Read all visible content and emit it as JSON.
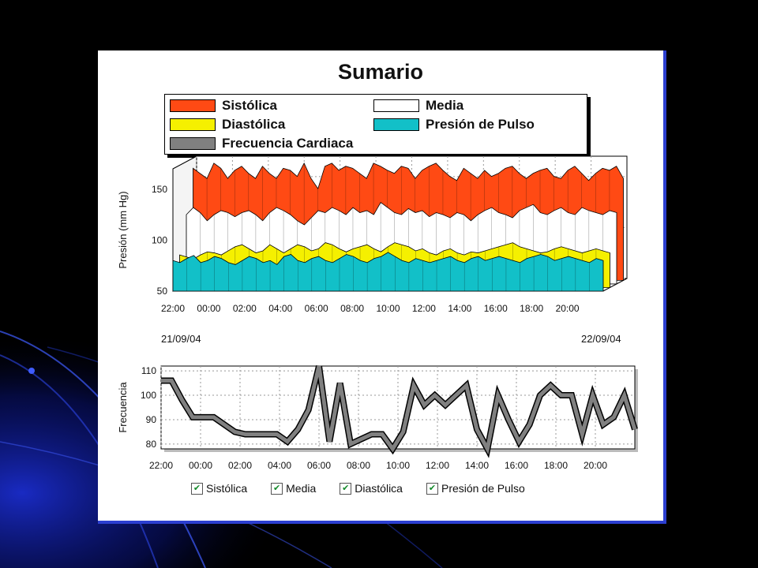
{
  "chart_data": [
    {
      "type": "area",
      "title": "Sumario",
      "ylabel": "Presión (mm Hg)",
      "ylim": [
        50,
        170
      ],
      "y_ticks": [
        50,
        100,
        150
      ],
      "x_tick_labels": [
        "22:00",
        "00:00",
        "02:00",
        "04:00",
        "06:00",
        "08:00",
        "10:00",
        "12:00",
        "14:00",
        "16:00",
        "18:00",
        "20:00"
      ],
      "grid": true,
      "legend_position": "top",
      "date_start": "21/09/04",
      "date_end": "22/09/04",
      "series": [
        {
          "name": "Sistólica",
          "color": "#ff4a14",
          "values": [
            160,
            155,
            150,
            165,
            160,
            150,
            158,
            162,
            155,
            150,
            162,
            155,
            150,
            160,
            158,
            152,
            165,
            150,
            140,
            162,
            165,
            158,
            162,
            160,
            155,
            150,
            165,
            162,
            158,
            155,
            162,
            160,
            150,
            158,
            162,
            165,
            158,
            152,
            148,
            160,
            155,
            150,
            158,
            152,
            155,
            160,
            162,
            155,
            150,
            155,
            158,
            160,
            152,
            150,
            158,
            162,
            155,
            148,
            155,
            160,
            158,
            162,
            150
          ]
        },
        {
          "name": "Media",
          "color": "#ffffff",
          "values": [
            118,
            125,
            120,
            112,
            118,
            122,
            120,
            116,
            120,
            122,
            118,
            112,
            120,
            125,
            122,
            118,
            112,
            108,
            115,
            122,
            120,
            125,
            122,
            118,
            125,
            120,
            122,
            118,
            130,
            125,
            120,
            118,
            124,
            120,
            122,
            116,
            120,
            118,
            115,
            120,
            118,
            112,
            118,
            122,
            125,
            120,
            118,
            115,
            122,
            125,
            128,
            120,
            118,
            122,
            125,
            120,
            118,
            125,
            122,
            120,
            118,
            122,
            120
          ]
        },
        {
          "name": "Diastólica",
          "color": "#f5f000",
          "values": [
            82,
            80,
            78,
            82,
            85,
            84,
            82,
            86,
            90,
            92,
            88,
            84,
            86,
            92,
            88,
            84,
            88,
            92,
            90,
            86,
            88,
            94,
            92,
            88,
            85,
            88,
            90,
            92,
            88,
            85,
            90,
            94,
            92,
            90,
            86,
            88,
            84,
            82,
            86,
            88,
            84,
            82,
            85,
            84,
            86,
            88,
            90,
            92,
            94,
            90,
            88,
            86,
            84,
            85,
            88,
            90,
            88,
            86,
            84,
            86,
            88,
            86,
            84
          ]
        },
        {
          "name": "Presión de Pulso",
          "color": "#12c0c8",
          "values": [
            80,
            78,
            82,
            85,
            78,
            80,
            84,
            82,
            78,
            76,
            80,
            84,
            82,
            78,
            80,
            76,
            84,
            86,
            80,
            78,
            82,
            84,
            80,
            78,
            82,
            86,
            84,
            80,
            78,
            82,
            84,
            88,
            84,
            80,
            78,
            82,
            80,
            78,
            80,
            82,
            84,
            80,
            78,
            82,
            84,
            80,
            82,
            84,
            82,
            80,
            78,
            82,
            84,
            86,
            84,
            80,
            82,
            84,
            82,
            80,
            78,
            82,
            80
          ]
        },
        {
          "name": "Frecuencia Cardiaca",
          "color": "#808080",
          "values": []
        }
      ]
    },
    {
      "type": "line",
      "ylabel": "Frecuencia",
      "ylim": [
        78,
        112
      ],
      "y_ticks": [
        80,
        90,
        100,
        110
      ],
      "x_tick_labels": [
        "22:00",
        "00:00",
        "02:00",
        "04:00",
        "06:00",
        "08:00",
        "10:00",
        "12:00",
        "14:00",
        "16:00",
        "18:00",
        "20:00"
      ],
      "grid": true,
      "series": [
        {
          "name": "Frecuencia Cardiaca",
          "color": "#808080",
          "values": [
            106,
            106,
            98,
            91,
            91,
            91,
            88,
            85,
            84,
            84,
            84,
            84,
            81,
            86,
            94,
            112,
            81,
            105,
            80,
            82,
            84,
            84,
            78,
            85,
            104,
            96,
            100,
            96,
            100,
            104,
            86,
            78,
            100,
            90,
            81,
            88,
            100,
            104,
            100,
            100,
            84,
            100,
            88,
            91,
            100,
            86
          ]
        }
      ]
    }
  ],
  "series_toggles": [
    {
      "label": "Sistólica",
      "checked": "✔"
    },
    {
      "label": "Media",
      "checked": "✔"
    },
    {
      "label": "Diastólica",
      "checked": "✔"
    },
    {
      "label": "Presión de Pulso",
      "checked": "✔"
    }
  ],
  "colors": {
    "panel_border": "#2c3fd0",
    "background": "#000000"
  }
}
